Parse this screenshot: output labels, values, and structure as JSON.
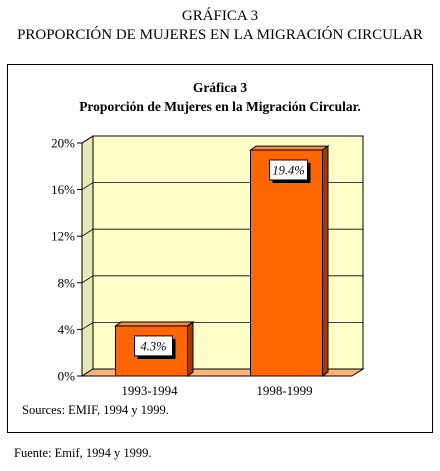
{
  "header": {
    "line1": "GRÁFICA 3",
    "line2": "PROPORCIÓN DE MUJERES EN LA MIGRACIÓN CIRCULAR"
  },
  "chart_data": {
    "type": "bar",
    "title": "Gráfica 3",
    "subtitle": "Proporción de Mujeres en la Migración Circular.",
    "categories": [
      "1993-1994",
      "1998-1999"
    ],
    "values": [
      4.3,
      19.4
    ],
    "data_labels": [
      "4.3%",
      "19.4%"
    ],
    "ylim": [
      0,
      20
    ],
    "yticks": [
      0,
      4,
      8,
      12,
      16,
      20
    ],
    "ytick_labels": [
      "0%",
      "4%",
      "8%",
      "12%",
      "16%",
      "20%"
    ],
    "grid": true,
    "style": "3d-column",
    "bar_color": "#ff6600",
    "wall_color": "#ffffc8"
  },
  "sources": "Sources: EMIF, 1994 y 1999.",
  "footer": "Fuente: Emif, 1994 y 1999."
}
